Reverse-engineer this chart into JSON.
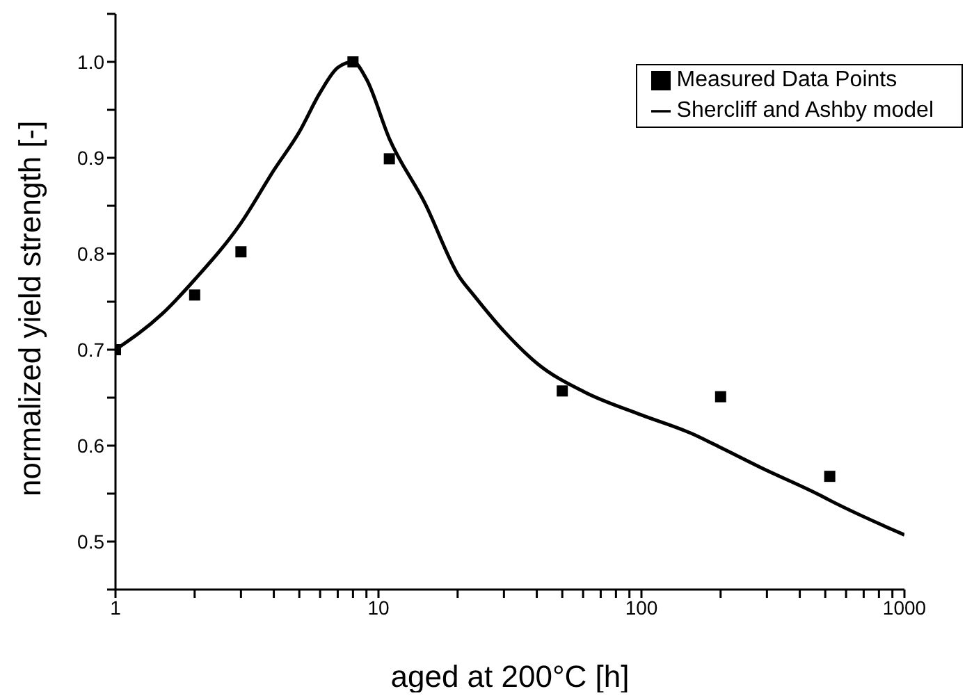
{
  "chart_data": {
    "type": "scatter",
    "xlabel": "aged at 200°C [h]",
    "ylabel": "normalized yield strength [-]",
    "log": "x",
    "grid": false,
    "legend": "top right",
    "xlim": [
      1,
      1000
    ],
    "ylim": [
      0.45,
      1.05
    ],
    "xticks": [
      1,
      {
        "value": 2,
        "label": null
      },
      {
        "value": 3,
        "label": null
      },
      {
        "value": 4,
        "label": null
      },
      {
        "value": 5,
        "label": null
      },
      {
        "value": 6,
        "label": null
      },
      {
        "value": 7,
        "label": null
      },
      {
        "value": 8,
        "label": null
      },
      {
        "value": 9,
        "label": null
      },
      10,
      {
        "value": 20,
        "label": null
      },
      {
        "value": 30,
        "label": null
      },
      {
        "value": 40,
        "label": null
      },
      {
        "value": 50,
        "label": null
      },
      {
        "value": 60,
        "label": null
      },
      {
        "value": 70,
        "label": null
      },
      {
        "value": 80,
        "label": null
      },
      {
        "value": 90,
        "label": null
      },
      100,
      {
        "value": 200,
        "label": null
      },
      {
        "value": 300,
        "label": null
      },
      {
        "value": 400,
        "label": null
      },
      {
        "value": 500,
        "label": null
      },
      {
        "value": 600,
        "label": null
      },
      {
        "value": 700,
        "label": null
      },
      {
        "value": 800,
        "label": null
      },
      {
        "value": 900,
        "label": null
      },
      1000
    ],
    "yticks": [
      {
        "value": 0.45,
        "label": null
      },
      0.5,
      {
        "value": 0.55,
        "label": null
      },
      0.6,
      {
        "value": 0.65,
        "label": null
      },
      0.7,
      {
        "value": 0.75,
        "label": null
      },
      0.8,
      {
        "value": 0.85,
        "label": null
      },
      0.9,
      {
        "value": 0.95,
        "label": null
      },
      {
        "value": 1,
        "label": "1.0"
      },
      {
        "value": 1.05,
        "label": null
      }
    ],
    "series": [
      {
        "name": "Measured Data Points",
        "type": "scatter",
        "marker": "square",
        "color": "#000000",
        "x": [
          1,
          2,
          3,
          8,
          11,
          50,
          200,
          520
        ],
        "values": [
          0.7,
          0.757,
          0.802,
          1.0,
          0.899,
          0.657,
          0.651,
          0.568
        ]
      },
      {
        "name": "Shercliff and Ashby model",
        "type": "line",
        "marker": "none",
        "line_style": "solid",
        "color": "#000000",
        "x": [
          1,
          1.5,
          2,
          3,
          4,
          5,
          6,
          7,
          8,
          9,
          11,
          15,
          20.3,
          23,
          30.3,
          40.4,
          60.6,
          100,
          154,
          200,
          285,
          480,
          520,
          1000
        ],
        "values": [
          0.7,
          0.737,
          0.773,
          0.832,
          0.887,
          0.927,
          0.968,
          0.994,
          1.0,
          0.982,
          0.92,
          0.853,
          0.776,
          0.757,
          0.718,
          0.685,
          0.656,
          0.632,
          0.613,
          0.598,
          0.577,
          0.548,
          0.543,
          0.507
        ]
      }
    ]
  }
}
